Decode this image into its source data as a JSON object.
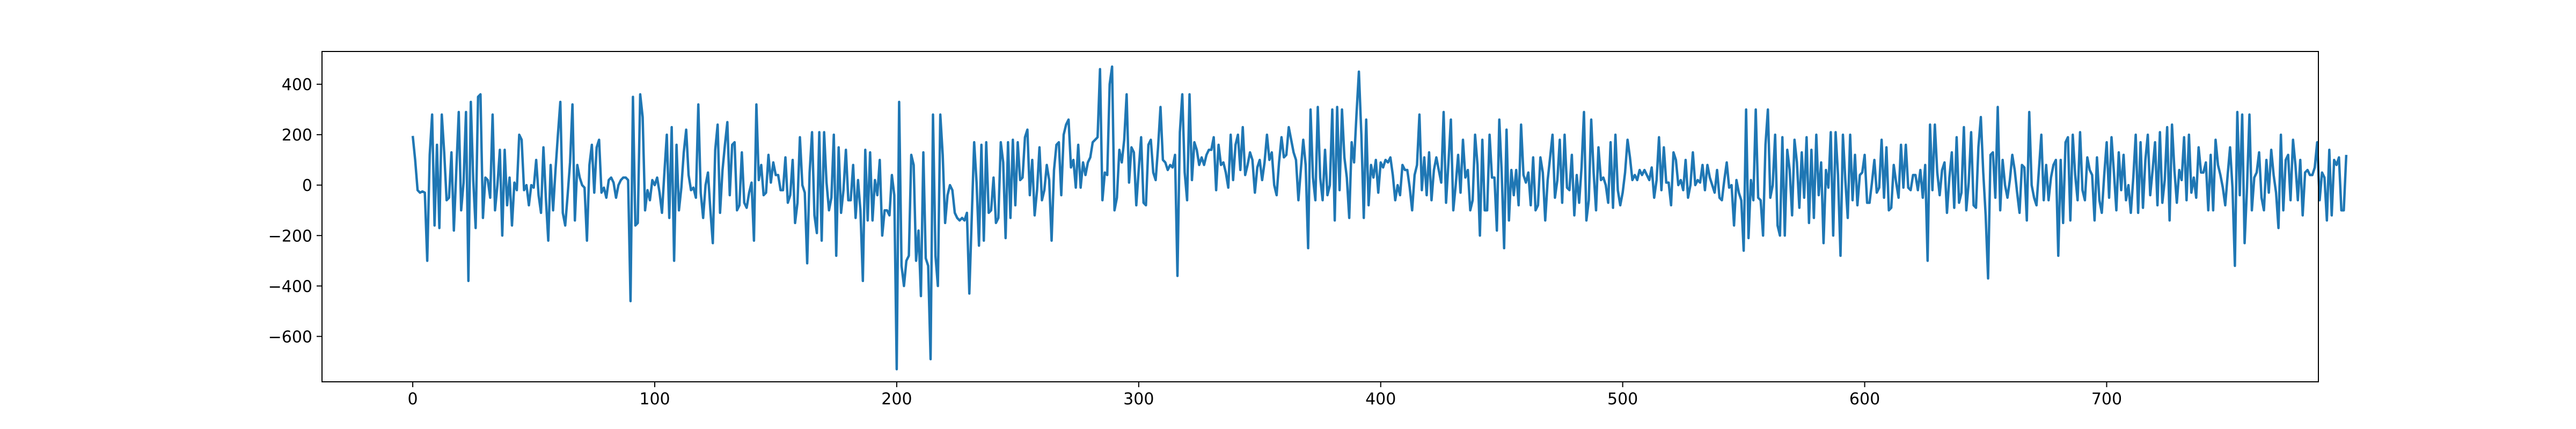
{
  "chart_data": {
    "type": "line",
    "title": "",
    "xlabel": "",
    "ylabel": "",
    "xlim": [
      -37.5,
      787.5
    ],
    "ylim": [
      -780,
      530
    ],
    "x_ticks": [
      0,
      100,
      200,
      300,
      400,
      500,
      600,
      700
    ],
    "y_ticks": [
      -600,
      -400,
      -200,
      0,
      200,
      400
    ],
    "grid": false,
    "legend": "none",
    "series": [
      {
        "color": "#1f77b4",
        "x_start": 0,
        "x_step": 1,
        "values": [
          195,
          100,
          -20,
          -30,
          -25,
          -30,
          -300,
          120,
          280,
          -160,
          160,
          -170,
          280,
          130,
          -60,
          -50,
          130,
          -180,
          60,
          290,
          -100,
          10,
          290,
          -380,
          330,
          20,
          -170,
          350,
          360,
          -130,
          30,
          20,
          -50,
          280,
          -100,
          0,
          140,
          -200,
          140,
          -80,
          30,
          -160,
          10,
          -20,
          200,
          180,
          -20,
          0,
          -80,
          0,
          -10,
          100,
          -40,
          -110,
          150,
          -50,
          -220,
          80,
          -100,
          60,
          200,
          330,
          -110,
          -160,
          -40,
          90,
          320,
          -140,
          80,
          30,
          0,
          -10,
          -220,
          80,
          160,
          -30,
          150,
          180,
          -30,
          -10,
          -50,
          20,
          30,
          10,
          -50,
          0,
          20,
          30,
          30,
          20,
          -460,
          350,
          -160,
          -150,
          360,
          270,
          -100,
          -20,
          -60,
          20,
          0,
          30,
          -30,
          -110,
          50,
          200,
          -130,
          230,
          -300,
          160,
          -100,
          -10,
          130,
          220,
          40,
          -20,
          -10,
          -50,
          320,
          -30,
          -130,
          0,
          50,
          -100,
          -230,
          140,
          240,
          -110,
          60,
          160,
          250,
          -40,
          160,
          170,
          -100,
          -80,
          130,
          -70,
          -90,
          -30,
          10,
          -220,
          320,
          20,
          80,
          -40,
          -30,
          120,
          10,
          90,
          40,
          40,
          -20,
          -20,
          110,
          -70,
          -40,
          100,
          -150,
          -70,
          190,
          0,
          -30,
          -310,
          50,
          210,
          -120,
          -190,
          210,
          -220,
          210,
          10,
          -100,
          -50,
          200,
          -280,
          150,
          -110,
          -20,
          140,
          -60,
          -60,
          80,
          -130,
          20,
          -100,
          -380,
          140,
          -140,
          130,
          -140,
          20,
          -40,
          100,
          -200,
          -100,
          -100,
          -120,
          40,
          -40,
          -730,
          330,
          -320,
          -400,
          -300,
          -280,
          120,
          80,
          -300,
          -180,
          -440,
          130,
          -290,
          -320,
          -690,
          280,
          -280,
          -400,
          280,
          120,
          -150,
          -40,
          0,
          -20,
          -110,
          -130,
          -140,
          -130,
          -140,
          -110,
          -430,
          -130,
          170,
          10,
          -240,
          160,
          -220,
          170,
          -110,
          -100,
          30,
          -150,
          -130,
          170,
          90,
          -210,
          170,
          -130,
          180,
          -80,
          170,
          20,
          30,
          190,
          220,
          -40,
          100,
          -120,
          -20,
          150,
          -60,
          -20,
          80,
          20,
          -220,
          60,
          160,
          170,
          -40,
          200,
          240,
          260,
          70,
          100,
          -10,
          160,
          -10,
          90,
          40,
          90,
          110,
          170,
          180,
          190,
          460,
          -60,
          50,
          40,
          400,
          470,
          -100,
          -50,
          140,
          90,
          180,
          360,
          10,
          150,
          130,
          -80,
          60,
          190,
          -70,
          -80,
          160,
          180,
          50,
          20,
          150,
          310,
          100,
          90,
          60,
          80,
          70,
          120,
          -360,
          210,
          360,
          50,
          -60,
          360,
          20,
          170,
          140,
          80,
          110,
          80,
          120,
          140,
          140,
          190,
          -20,
          160,
          80,
          90,
          50,
          -10,
          200,
          20,
          160,
          200,
          60,
          230,
          40,
          80,
          130,
          100,
          -30,
          70,
          100,
          20,
          90,
          200,
          100,
          130,
          0,
          -40,
          90,
          190,
          110,
          120,
          230,
          180,
          130,
          100,
          -60,
          60,
          180,
          80,
          -250,
          300,
          30,
          -60,
          310,
          30,
          -60,
          140,
          -40,
          0,
          300,
          -140,
          310,
          -20,
          300,
          110,
          30,
          -130,
          170,
          90,
          280,
          450,
          200,
          -130,
          260,
          -80,
          80,
          30,
          100,
          -30,
          90,
          70,
          100,
          90,
          110,
          40,
          -60,
          0,
          -40,
          80,
          60,
          60,
          -10,
          -100,
          40,
          80,
          280,
          -20,
          110,
          -40,
          130,
          -60,
          60,
          110,
          60,
          10,
          290,
          -70,
          90,
          260,
          -100,
          0,
          120,
          -30,
          180,
          30,
          60,
          -100,
          -60,
          200,
          80,
          -200,
          180,
          -100,
          -100,
          200,
          30,
          30,
          -180,
          260,
          50,
          -250,
          220,
          -140,
          60,
          -40,
          60,
          -80,
          240,
          40,
          10,
          50,
          -80,
          110,
          -100,
          -80,
          110,
          50,
          -140,
          20,
          110,
          200,
          -50,
          20,
          180,
          -70,
          200,
          -10,
          -20,
          120,
          -120,
          40,
          -70,
          70,
          290,
          -140,
          -60,
          260,
          50,
          -100,
          150,
          20,
          30,
          0,
          -70,
          170,
          -90,
          200,
          -20,
          -80,
          -30,
          50,
          180,
          110,
          20,
          40,
          20,
          60,
          40,
          60,
          40,
          20,
          70,
          -50,
          20,
          190,
          -20,
          150,
          10,
          10,
          -80,
          130,
          100,
          0,
          20,
          -20,
          100,
          -50,
          0,
          130,
          0,
          20,
          10,
          80,
          -20,
          80,
          30,
          0,
          -30,
          60,
          -50,
          -60,
          20,
          90,
          -10,
          0,
          -160,
          20,
          -30,
          -60,
          -260,
          300,
          -210,
          20,
          -60,
          300,
          -50,
          -60,
          -200,
          160,
          300,
          -50,
          0,
          200,
          -160,
          -200,
          190,
          -200,
          140,
          60,
          -120,
          180,
          90,
          -90,
          130,
          -50,
          190,
          -150,
          140,
          -130,
          200,
          -40,
          90,
          -230,
          60,
          -10,
          210,
          -200,
          210,
          40,
          -280,
          200,
          20,
          -130,
          200,
          -60,
          120,
          -80,
          40,
          50,
          120,
          -70,
          -70,
          10,
          100,
          -30,
          -10,
          180,
          -50,
          150,
          -100,
          -90,
          80,
          10,
          -50,
          160,
          -10,
          160,
          -10,
          -20,
          40,
          40,
          -20,
          60,
          -50,
          80,
          -300,
          240,
          -20,
          240,
          50,
          -40,
          60,
          90,
          -110,
          30,
          130,
          -90,
          190,
          -70,
          -30,
          230,
          -100,
          10,
          210,
          -80,
          -90,
          150,
          270,
          50,
          -120,
          -370,
          120,
          130,
          -50,
          310,
          -100,
          100,
          0,
          -50,
          20,
          120,
          60,
          -30,
          -110,
          80,
          70,
          -140,
          290,
          0,
          -50,
          -80,
          60,
          200,
          -60,
          80,
          -60,
          30,
          80,
          100,
          -280,
          100,
          -150,
          170,
          190,
          -140,
          200,
          40,
          -60,
          210,
          -20,
          -60,
          110,
          60,
          40,
          -140,
          110,
          -60,
          -110,
          40,
          170,
          -50,
          190,
          50,
          -100,
          130,
          -20,
          120,
          -60,
          0,
          -110,
          30,
          200,
          -110,
          170,
          -90,
          100,
          200,
          -40,
          60,
          170,
          -80,
          210,
          -70,
          20,
          230,
          -140,
          240,
          60,
          -70,
          60,
          20,
          190,
          -60,
          200,
          -30,
          30,
          -50,
          150,
          50,
          50,
          90,
          -100,
          120,
          -100,
          180,
          80,
          40,
          -10,
          -80,
          40,
          150,
          -10,
          -320,
          290,
          -40,
          280,
          -230,
          -10,
          280,
          -100,
          30,
          50,
          130,
          -50,
          -100,
          100,
          -30,
          140,
          40,
          -30,
          -170,
          200,
          -100,
          100,
          120,
          -60,
          180,
          80,
          -60,
          100,
          -120,
          50,
          60,
          40,
          40,
          70,
          170,
          -60,
          50,
          30,
          -140,
          140,
          -120,
          100,
          80,
          110,
          -100,
          -100,
          120
        ]
      }
    ]
  }
}
